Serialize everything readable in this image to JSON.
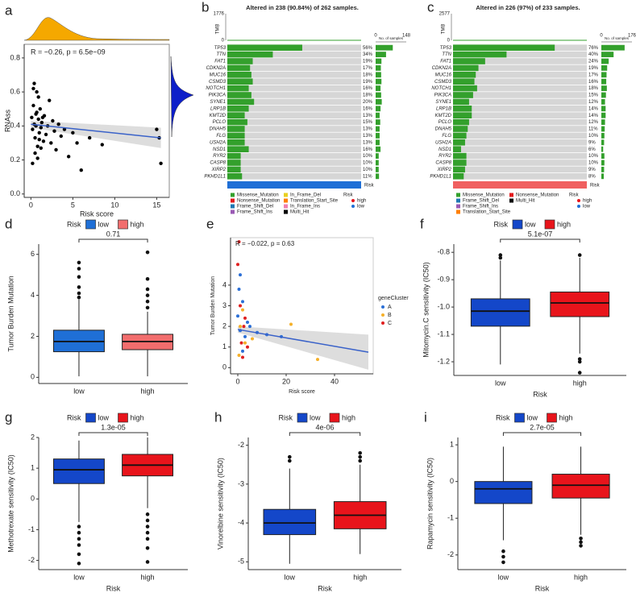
{
  "chart_data": [
    {
      "panel": "a",
      "type": "scatter",
      "annotation": "R = −0.26, p = 6.5e−09",
      "xlabel": "Risk score",
      "ylabel": "RNAss",
      "x": [
        0.1,
        0.2,
        0.3,
        0.4,
        0.5,
        0.6,
        0.7,
        0.8,
        0.9,
        1.0,
        1.1,
        1.2,
        1.3,
        1.5,
        1.6,
        1.8,
        2.0,
        2.2,
        2.4,
        2.6,
        2.8,
        3.0,
        3.3,
        3.6,
        4.0,
        4.5,
        5.0,
        5.5,
        6.0,
        7.0,
        0.3,
        0.5,
        0.7,
        0.9,
        1.2,
        1.4,
        0.2,
        0.6,
        1.0,
        15.0,
        15.3,
        15.5,
        8.5,
        0.4,
        0.8
      ],
      "y": [
        0.45,
        0.38,
        0.52,
        0.41,
        0.33,
        0.47,
        0.6,
        0.28,
        0.44,
        0.36,
        0.5,
        0.39,
        0.42,
        0.31,
        0.46,
        0.35,
        0.4,
        0.55,
        0.3,
        0.43,
        0.37,
        0.26,
        0.41,
        0.34,
        0.38,
        0.22,
        0.36,
        0.3,
        0.14,
        0.33,
        0.62,
        0.24,
        0.48,
        0.57,
        0.27,
        0.45,
        0.18,
        0.4,
        0.32,
        0.38,
        0.33,
        0.18,
        0.29,
        0.65,
        0.21
      ],
      "color": "#000000",
      "fit": {
        "x": [
          0,
          15.5
        ],
        "y": [
          0.41,
          0.33
        ],
        "color": "#3a62c9"
      },
      "xlim": [
        -0.8,
        16.5
      ],
      "ylim": [
        -0.02,
        0.88
      ],
      "xticks": [
        0,
        5,
        10,
        15
      ],
      "yticks": [
        {
          "value": 0,
          "label": "0.0"
        },
        0.2,
        0.4,
        0.6,
        0.8
      ]
    },
    {
      "panel": "b",
      "type": "oncoplot",
      "title": "Altered in 238 (90.84%) of 262 samples.",
      "tmb_label": "TMB",
      "tmb_ticks": [
        0,
        1776
      ],
      "count_label": "No. of samples",
      "count_ticks": [
        0,
        148
      ],
      "genes": [
        "TP53",
        "TTN",
        "FAT1",
        "CDKN2A",
        "MUC16",
        "CSMD3",
        "NOTCH1",
        "PIK3CA",
        "SYNE1",
        "LRP1B",
        "KMT2D",
        "PCLO",
        "DNAH5",
        "FLG",
        "USH2A",
        "NSD1",
        "RYR2",
        "CASP8",
        "XIRP2",
        "PKHD1L1"
      ],
      "values": [
        56,
        34,
        19,
        17,
        18,
        19,
        16,
        18,
        20,
        16,
        13,
        15,
        13,
        13,
        13,
        16,
        10,
        10,
        10,
        11
      ],
      "value_labels": [
        "56%",
        "34%",
        "19%",
        "17%",
        "18%",
        "19%",
        "16%",
        "18%",
        "20%",
        "16%",
        "13%",
        "15%",
        "13%",
        "13%",
        "13%",
        "16%",
        "10%",
        "10%",
        "10%",
        "11%"
      ],
      "risk_bar_label": "Risk",
      "risk_color": "#1f6fd6",
      "legend": [
        {
          "name": "Missense_Mutation",
          "color": "#33a02c"
        },
        {
          "name": "Nonsense_Mutation",
          "color": "#e31a1c"
        },
        {
          "name": "Frame_Shift_Del",
          "color": "#1f78b4"
        },
        {
          "name": "Frame_Shift_Ins",
          "color": "#9a5ab4"
        },
        {
          "name": "In_Frame_Del",
          "color": "#e8d020"
        },
        {
          "name": "Translation_Start_Site",
          "color": "#ff7f00"
        },
        {
          "name": "In_Frame_Ins",
          "color": "#f080b0"
        },
        {
          "name": "Multi_Hit",
          "color": "#000000"
        }
      ],
      "risk_legend": {
        "title": "Risk",
        "items": [
          {
            "name": "high",
            "color": "#e8141b"
          },
          {
            "name": "low",
            "color": "#1f6fd6"
          }
        ]
      }
    },
    {
      "panel": "c",
      "type": "oncoplot",
      "title": "Altered in 226 (97%) of 233 samples.",
      "tmb_label": "TMB",
      "tmb_ticks": [
        0,
        2577
      ],
      "count_label": "No. of samples",
      "count_ticks": [
        0,
        176
      ],
      "genes": [
        "TP53",
        "TTN",
        "FAT1",
        "CDKN2A",
        "MUC16",
        "CSMD3",
        "NOTCH1",
        "PIK3CA",
        "SYNE1",
        "LRP1B",
        "KMT2D",
        "PCLO",
        "DNAH5",
        "FLG",
        "USH2A",
        "NSD1",
        "RYR2",
        "CASP8",
        "XIRP2",
        "PKHD1L1"
      ],
      "values": [
        76,
        40,
        24,
        19,
        17,
        16,
        18,
        15,
        12,
        14,
        14,
        12,
        11,
        10,
        9,
        6,
        10,
        10,
        9,
        8
      ],
      "value_labels": [
        "76%",
        "40%",
        "24%",
        "19%",
        "17%",
        "16%",
        "18%",
        "15%",
        "12%",
        "14%",
        "14%",
        "12%",
        "11%",
        "10%",
        "9%",
        "6%",
        "10%",
        "10%",
        "9%",
        "8%"
      ],
      "risk_bar_label": "Risk",
      "risk_color": "#f06060",
      "legend": [
        {
          "name": "Missense_Mutation",
          "color": "#33a02c"
        },
        {
          "name": "Frame_Shift_Del",
          "color": "#1f78b4"
        },
        {
          "name": "Frame_Shift_Ins",
          "color": "#9a5ab4"
        },
        {
          "name": "Translation_Start_Site",
          "color": "#ff7f00"
        },
        {
          "name": "Nonsense_Mutation",
          "color": "#e31a1c"
        },
        {
          "name": "Multi_Hit",
          "color": "#000000"
        }
      ],
      "risk_legend": {
        "title": "Risk",
        "items": [
          {
            "name": "high",
            "color": "#e8141b"
          },
          {
            "name": "low",
            "color": "#1f6fd6"
          }
        ]
      }
    },
    {
      "panel": "d",
      "type": "box",
      "legend_title": "Risk",
      "annotation": "0.71",
      "ylabel": "Tumor Burden Mutation",
      "categories": [
        "low",
        "high"
      ],
      "series": [
        {
          "name": "low",
          "color": "#1f6fd6",
          "q1": 1.25,
          "median": 1.75,
          "q3": 2.3,
          "whisker_low": 0.05,
          "whisker_high": 3.8,
          "outliers": [
            3.9,
            4.1,
            4.4,
            4.9,
            5.3,
            5.6
          ]
        },
        {
          "name": "high",
          "color": "#f26d6d",
          "q1": 1.35,
          "median": 1.75,
          "q3": 2.1,
          "whisker_low": 0.05,
          "whisker_high": 3.2,
          "outliers": [
            3.4,
            3.7,
            4.0,
            4.3,
            4.8,
            6.1
          ]
        }
      ],
      "ylim": [
        -0.3,
        6.5
      ],
      "yticks": [
        0,
        2,
        4,
        6
      ]
    },
    {
      "panel": "e",
      "type": "cluster_scatter",
      "annotation": "R = −0.022, p = 0.63",
      "xlabel": "Risk score",
      "ylabel": "Tumor Burden Mutation",
      "legend_title": "geneCluster",
      "series": [
        {
          "name": "A",
          "color": "#2b6fd6",
          "x": [
            0,
            1,
            2,
            3,
            5,
            8,
            12,
            18,
            1,
            2,
            0.5,
            4
          ],
          "y": [
            2.5,
            1.8,
            3.2,
            1.5,
            2.0,
            1.7,
            1.6,
            1.5,
            4.5,
            0.8,
            3.8,
            2.2
          ]
        },
        {
          "name": "B",
          "color": "#f5b02a",
          "x": [
            1,
            3,
            22,
            33,
            0.5,
            2,
            6
          ],
          "y": [
            2.0,
            1.2,
            2.1,
            0.4,
            0.6,
            2.8,
            1.4
          ]
        },
        {
          "name": "C",
          "color": "#e02020",
          "x": [
            0.5,
            1,
            2,
            1.5,
            3,
            0,
            4,
            2.5
          ],
          "y": [
            6.1,
            3.0,
            0.5,
            1.2,
            2.4,
            5.0,
            1.0,
            2.0
          ]
        }
      ],
      "fit": {
        "x": [
          0,
          54
        ],
        "y": [
          1.85,
          0.75
        ],
        "color": "#3a62c9"
      },
      "xlim": [
        -3,
        56
      ],
      "ylim": [
        -0.3,
        6.3
      ],
      "xticks": [
        0,
        20,
        40
      ],
      "yticks": [
        0,
        1,
        2,
        3,
        4
      ]
    },
    {
      "panel": "f",
      "type": "box",
      "legend_title": "Risk",
      "annotation": "5.1e-07",
      "ylabel": "Mitomycin.C sensitivity (IC50)",
      "xlabel": "Risk",
      "categories": [
        "low",
        "high"
      ],
      "series": [
        {
          "name": "low",
          "color": "#1447c9",
          "q1": -1.07,
          "median": -1.015,
          "q3": -0.97,
          "whisker_low": -1.21,
          "whisker_high": -0.83,
          "outliers": [
            -0.81,
            -0.82
          ]
        },
        {
          "name": "high",
          "color": "#e8141b",
          "q1": -1.035,
          "median": -0.985,
          "q3": -0.945,
          "whisker_low": -1.17,
          "whisker_high": -0.82,
          "outliers": [
            -0.81,
            -1.19,
            -1.2,
            -1.24
          ]
        }
      ],
      "ylim": [
        -1.25,
        -0.77
      ],
      "yticks": [
        -0.8,
        -0.9,
        {
          "value": -1,
          "label": "-1.0"
        },
        -1.1,
        -1.2
      ]
    },
    {
      "panel": "g",
      "type": "box",
      "legend_title": "Risk",
      "annotation": "1.3e-05",
      "ylabel": "Methotrexate sensitivity (IC50)",
      "xlabel": "Risk",
      "categories": [
        "low",
        "high"
      ],
      "series": [
        {
          "name": "low",
          "color": "#1447c9",
          "q1": 0.5,
          "median": 0.95,
          "q3": 1.3,
          "whisker_low": -0.75,
          "whisker_high": 1.9,
          "outliers": [
            -0.9,
            -1.1,
            -1.3,
            -1.5,
            -1.8,
            -2.1
          ]
        },
        {
          "name": "high",
          "color": "#e8141b",
          "q1": 0.75,
          "median": 1.1,
          "q3": 1.45,
          "whisker_low": -0.3,
          "whisker_high": 2.0,
          "outliers": [
            -0.5,
            -0.7,
            -0.9,
            -1.1,
            -1.3,
            -1.6,
            -2.05
          ]
        }
      ],
      "ylim": [
        -2.3,
        2.0
      ],
      "yticks": [
        -2,
        -1,
        0,
        1,
        2
      ]
    },
    {
      "panel": "h",
      "type": "box",
      "legend_title": "Risk",
      "annotation": "4e-06",
      "ylabel": "Vinorelbine sensitivity (IC50)",
      "xlabel": "Risk",
      "categories": [
        "low",
        "high"
      ],
      "series": [
        {
          "name": "low",
          "color": "#1447c9",
          "q1": -4.3,
          "median": -4.0,
          "q3": -3.65,
          "whisker_low": -5.05,
          "whisker_high": -2.6,
          "outliers": [
            -2.4,
            -2.3
          ]
        },
        {
          "name": "high",
          "color": "#e8141b",
          "q1": -4.15,
          "median": -3.8,
          "q3": -3.45,
          "whisker_low": -4.8,
          "whisker_high": -2.5,
          "outliers": [
            -2.4,
            -2.3,
            -2.2
          ]
        }
      ],
      "ylim": [
        -5.2,
        -1.8
      ],
      "yticks": [
        -2,
        -3,
        -4,
        -5
      ]
    },
    {
      "panel": "i",
      "type": "box",
      "legend_title": "Risk",
      "annotation": "2.7e-05",
      "ylabel": "Rapamycin sensitivity (IC50)",
      "xlabel": "Risk",
      "categories": [
        "low",
        "high"
      ],
      "series": [
        {
          "name": "low",
          "color": "#1447c9",
          "q1": -0.6,
          "median": -0.2,
          "q3": 0.0,
          "whisker_low": -1.6,
          "whisker_high": 0.95,
          "outliers": [
            -1.9,
            -2.05,
            -2.2
          ]
        },
        {
          "name": "high",
          "color": "#e8141b",
          "q1": -0.45,
          "median": -0.1,
          "q3": 0.2,
          "whisker_low": -1.45,
          "whisker_high": 0.95,
          "outliers": [
            -1.55,
            -1.65,
            -1.75
          ]
        }
      ],
      "ylim": [
        -2.4,
        1.2
      ],
      "yticks": [
        -2,
        -1,
        0,
        1
      ]
    }
  ]
}
